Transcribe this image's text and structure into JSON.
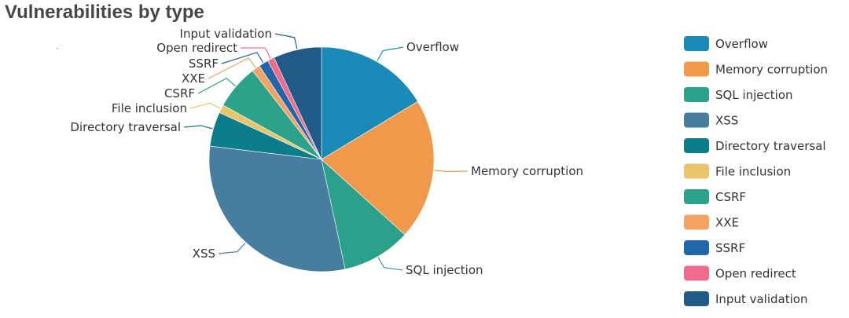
{
  "chart_data": {
    "type": "pie",
    "title": "Vulnerabilities by type",
    "categories": [
      "Overflow",
      "Memory corruption",
      "SQL injection",
      "XSS",
      "Directory traversal",
      "File inclusion",
      "CSRF",
      "XXE",
      "SSRF",
      "Open redirect",
      "Input validation"
    ],
    "values": [
      16.5,
      20.5,
      10.0,
      30.5,
      5.0,
      1.2,
      6.5,
      1.2,
      1.4,
      1.0,
      7.0
    ],
    "colors": [
      "#1a8bb8",
      "#f0994a",
      "#2ba08a",
      "#477ea0",
      "#0b7d8b",
      "#e9c46a",
      "#2ca28a",
      "#f4a261",
      "#2166a8",
      "#f06a8c",
      "#1f5b86"
    ],
    "legend": "right"
  }
}
